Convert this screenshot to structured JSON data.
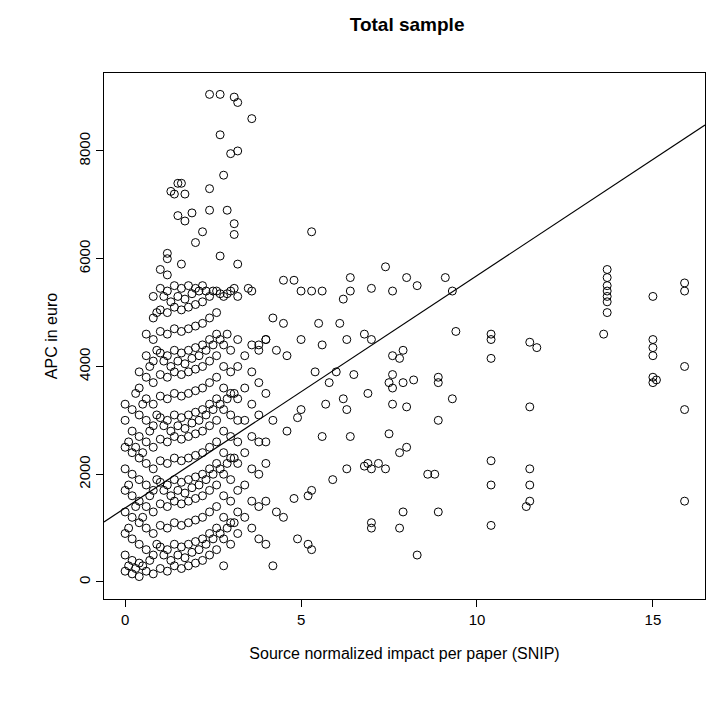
{
  "chart_data": {
    "type": "scatter",
    "title": "Total sample",
    "x_label": "Source normalized impact per paper (SNIP)",
    "y_label": "APC in euro",
    "xlim": [
      -0.6,
      16.48
    ],
    "ylim": [
      -316,
      9447
    ],
    "xticks": [
      0,
      5,
      10,
      15
    ],
    "yticks": [
      0,
      2000,
      4000,
      6000,
      8000
    ],
    "grid": false,
    "series": [
      {
        "type": "scatter",
        "marker": "open_circle",
        "color": "#000000",
        "x": [
          0.0,
          0.0,
          0.0,
          0.0,
          0.0,
          0.0,
          0.0,
          0.0,
          0.0,
          0.1,
          0.1,
          0.1,
          0.1,
          0.2,
          0.2,
          0.2,
          0.2,
          0.2,
          0.2,
          0.2,
          0.2,
          0.2,
          0.3,
          0.3,
          0.3,
          0.3,
          0.4,
          0.4,
          0.4,
          0.4,
          0.4,
          0.4,
          0.4,
          0.4,
          0.4,
          0.4,
          0.4,
          0.5,
          0.5,
          0.5,
          0.5,
          0.6,
          0.6,
          0.6,
          0.6,
          0.6,
          0.6,
          0.6,
          0.6,
          0.6,
          0.6,
          0.6,
          0.6,
          0.7,
          0.7,
          0.7,
          0.7,
          0.8,
          0.8,
          0.8,
          0.8,
          0.8,
          0.8,
          0.8,
          0.8,
          0.8,
          0.8,
          0.8,
          0.8,
          0.8,
          0.8,
          0.9,
          0.9,
          0.9,
          0.9,
          0.9,
          1.0,
          1.0,
          1.0,
          1.0,
          1.0,
          1.0,
          1.0,
          1.0,
          1.0,
          1.0,
          1.0,
          1.0,
          1.0,
          1.0,
          1.0,
          1.1,
          1.1,
          1.1,
          1.1,
          1.1,
          1.2,
          1.2,
          1.2,
          1.2,
          1.2,
          1.2,
          1.2,
          1.2,
          1.2,
          1.2,
          1.2,
          1.2,
          1.2,
          1.2,
          1.2,
          1.2,
          1.3,
          1.3,
          1.3,
          1.3,
          1.3,
          1.4,
          1.4,
          1.4,
          1.4,
          1.4,
          1.4,
          1.4,
          1.4,
          1.4,
          1.4,
          1.4,
          1.4,
          1.4,
          1.4,
          1.5,
          1.5,
          1.5,
          1.5,
          1.5,
          1.6,
          1.6,
          1.6,
          1.6,
          1.6,
          1.6,
          1.6,
          1.6,
          1.6,
          1.6,
          1.6,
          1.6,
          1.6,
          1.6,
          1.6,
          1.7,
          1.7,
          1.7,
          1.7,
          1.7,
          1.8,
          1.8,
          1.8,
          1.8,
          1.8,
          1.8,
          1.8,
          1.8,
          1.8,
          1.8,
          1.8,
          1.8,
          1.8,
          1.8,
          1.9,
          1.9,
          1.9,
          1.9,
          1.9,
          2.0,
          2.0,
          2.0,
          2.0,
          2.0,
          2.0,
          2.0,
          2.0,
          2.0,
          2.0,
          2.0,
          2.0,
          2.0,
          2.0,
          2.1,
          2.1,
          2.1,
          2.1,
          2.1,
          2.2,
          2.2,
          2.2,
          2.2,
          2.2,
          2.2,
          2.2,
          2.2,
          2.2,
          2.2,
          2.2,
          2.2,
          2.2,
          2.2,
          2.3,
          2.3,
          2.3,
          2.3,
          2.3,
          2.4,
          2.4,
          2.4,
          2.4,
          2.4,
          2.4,
          2.4,
          2.4,
          2.4,
          2.4,
          2.4,
          2.4,
          2.4,
          2.5,
          2.5,
          2.5,
          2.5,
          2.5,
          2.6,
          2.6,
          2.6,
          2.6,
          2.6,
          2.6,
          2.6,
          2.6,
          2.6,
          2.6,
          2.6,
          2.6,
          2.6,
          2.7,
          2.7,
          2.7,
          2.7,
          2.7,
          2.8,
          2.8,
          2.8,
          2.8,
          2.8,
          2.8,
          2.8,
          2.8,
          2.8,
          2.8,
          2.8,
          2.8,
          2.9,
          2.9,
          2.9,
          2.9,
          2.9,
          3.0,
          3.0,
          3.0,
          3.0,
          3.0,
          3.0,
          3.0,
          3.0,
          3.0,
          3.0,
          3.0,
          3.1,
          3.1,
          3.1,
          3.1,
          3.2,
          3.2,
          3.2,
          3.2,
          3.2,
          3.2,
          3.2,
          3.2,
          3.2,
          3.2,
          3.4,
          3.4,
          3.4,
          3.4,
          3.4,
          3.4,
          3.6,
          3.6,
          3.6,
          3.6,
          3.6,
          3.6,
          3.6,
          3.8,
          3.8,
          3.8,
          3.8,
          3.8,
          3.8,
          3.8,
          4.0,
          4.0,
          4.0,
          4.0,
          4.0,
          1.4,
          1.5,
          1.6,
          1.7,
          1.5,
          1.7,
          1.9,
          2.4,
          2.7,
          3.1,
          3.2,
          2.7,
          3.6,
          3.0,
          3.2,
          2.8,
          2.4,
          2.9,
          3.1,
          3.1,
          2.4,
          2.2,
          1.3,
          2.0,
          2.7,
          3.2,
          1.2,
          5.3,
          4.5,
          4.8,
          5.0,
          5.3,
          5.6,
          6.4,
          6.4,
          7.0,
          7.6,
          7.4,
          8.0,
          8.3,
          9.1,
          9.3,
          6.2,
          3.5,
          3.6,
          4.2,
          4.5,
          5.5,
          6.1,
          6.8,
          5.0,
          4.0,
          3.8,
          4.3,
          4.6,
          5.6,
          6.3,
          7.0,
          7.6,
          7.9,
          9.4,
          7.8,
          6.5,
          7.5,
          7.6,
          7.9,
          8.2,
          8.9,
          8.9,
          7.6,
          6.0,
          5.4,
          5.8,
          6.9,
          6.2,
          5.0,
          5.7,
          7.6,
          8.0,
          6.3,
          4.9,
          4.2,
          4.6,
          5.6,
          6.4,
          7.5,
          8.0,
          7.8,
          7.2,
          7.0,
          6.9,
          6.8,
          7.4,
          6.3,
          5.9,
          5.3,
          5.2,
          4.8,
          4.3,
          4.5,
          4.9,
          5.2,
          5.3,
          4.2,
          4.0,
          7.0,
          7.0,
          7.9,
          7.8,
          8.3,
          8.6,
          8.9,
          8.9,
          8.8,
          9.3,
          10.4,
          10.4,
          10.4,
          10.4,
          10.4,
          10.4,
          11.5,
          11.7,
          11.5,
          11.5,
          11.5,
          11.5,
          11.4,
          13.7,
          13.7,
          13.7,
          13.7,
          13.7,
          13.7,
          13.7,
          13.6,
          15.0,
          15.0,
          15.0,
          15.0,
          15.0,
          15.0,
          15.1,
          15.9,
          15.9,
          15.9,
          15.9,
          15.9
        ],
        "values": [
          200,
          500,
          900,
          1300,
          1700,
          2100,
          2500,
          3000,
          3300,
          300,
          1000,
          1800,
          2600,
          150,
          400,
          800,
          1200,
          1600,
          2000,
          2400,
          2800,
          3200,
          250,
          1400,
          2500,
          3500,
          100,
          350,
          700,
          1100,
          1500,
          1900,
          2300,
          2700,
          3100,
          3600,
          3900,
          300,
          1200,
          2400,
          3300,
          200,
          600,
          1000,
          1400,
          1800,
          2200,
          2600,
          3000,
          3400,
          3800,
          4200,
          4600,
          400,
          1600,
          2800,
          4000,
          150,
          500,
          900,
          1300,
          1700,
          2100,
          2500,
          2900,
          3300,
          3700,
          4100,
          4500,
          4900,
          5300,
          700,
          1900,
          3100,
          4300,
          5000,
          250,
          650,
          1050,
          1450,
          1850,
          2250,
          2650,
          3050,
          3450,
          3850,
          4250,
          4650,
          5050,
          5450,
          5800,
          500,
          1700,
          2900,
          4100,
          5300,
          200,
          600,
          1000,
          1400,
          1800,
          2200,
          2600,
          3000,
          3400,
          3800,
          4200,
          4600,
          5000,
          5400,
          5700,
          6100,
          400,
          1600,
          2800,
          4000,
          5200,
          300,
          700,
          1100,
          1500,
          1900,
          2300,
          2700,
          3100,
          3500,
          3900,
          4300,
          4700,
          5100,
          5500,
          500,
          1700,
          2900,
          4100,
          5300,
          250,
          650,
          1050,
          1450,
          1850,
          2250,
          2650,
          3050,
          3450,
          3850,
          4250,
          4650,
          5050,
          5450,
          5900,
          450,
          1650,
          2850,
          4050,
          5250,
          300,
          700,
          1100,
          1500,
          1900,
          2300,
          2700,
          3100,
          3500,
          3900,
          4300,
          4700,
          5100,
          5500,
          550,
          1750,
          2950,
          4150,
          5350,
          350,
          750,
          1150,
          1550,
          1950,
          2350,
          2750,
          3150,
          3550,
          3950,
          4350,
          4750,
          5150,
          5450,
          600,
          1800,
          3000,
          4200,
          5400,
          400,
          800,
          1200,
          1600,
          2000,
          2400,
          2800,
          3200,
          3600,
          4000,
          4400,
          4800,
          5200,
          5500,
          700,
          1900,
          3100,
          4300,
          5400,
          500,
          900,
          1300,
          1700,
          2100,
          2500,
          2900,
          3300,
          3700,
          4100,
          4500,
          4900,
          5300,
          800,
          2000,
          3200,
          4400,
          5400,
          600,
          1000,
          1400,
          1800,
          2200,
          2600,
          3000,
          3400,
          3800,
          4200,
          4600,
          5000,
          5400,
          900,
          2100,
          3300,
          4500,
          5350,
          300,
          800,
          1200,
          1600,
          2000,
          2400,
          2800,
          3200,
          3600,
          4000,
          4400,
          5300,
          1000,
          2200,
          3400,
          4600,
          5350,
          700,
          1100,
          1500,
          1900,
          2300,
          2700,
          3100,
          3500,
          3900,
          4300,
          5400,
          1100,
          2300,
          3500,
          5450,
          900,
          1300,
          1700,
          2200,
          2600,
          3000,
          3400,
          4000,
          4500,
          5300,
          1200,
          1800,
          2400,
          3000,
          3600,
          4200,
          1000,
          1500,
          2100,
          2700,
          3300,
          3900,
          4400,
          800,
          1400,
          2000,
          2600,
          3100,
          3700,
          4300,
          1500,
          2200,
          2600,
          3500,
          4500,
          7200,
          7400,
          7400,
          7200,
          6800,
          6700,
          6850,
          9050,
          9050,
          9000,
          8900,
          8300,
          8600,
          7950,
          8000,
          7550,
          7300,
          6900,
          6650,
          6450,
          6900,
          6500,
          7250,
          6300,
          6050,
          5900,
          6000,
          6500,
          5600,
          5600,
          5400,
          5400,
          5400,
          5650,
          5400,
          5450,
          5400,
          5850,
          5650,
          5500,
          5650,
          5400,
          5250,
          5450,
          5400,
          4900,
          4800,
          4800,
          4800,
          4600,
          4500,
          4500,
          4400,
          4300,
          4200,
          4400,
          4500,
          4500,
          4200,
          4300,
          4650,
          4150,
          3850,
          3700,
          3600,
          3700,
          3750,
          3800,
          3700,
          3850,
          3900,
          3900,
          3700,
          3500,
          3400,
          3200,
          3300,
          3300,
          3250,
          3200,
          3050,
          3000,
          2800,
          2700,
          2700,
          2750,
          2500,
          2400,
          2200,
          2100,
          2200,
          2150,
          2100,
          2100,
          1900,
          1700,
          1600,
          1550,
          1300,
          1200,
          800,
          700,
          600,
          300,
          700,
          1100,
          1000,
          1300,
          1000,
          500,
          2000,
          3000,
          1300,
          2000,
          3400,
          4600,
          4500,
          4150,
          2250,
          1800,
          1050,
          4450,
          4350,
          3250,
          2100,
          1800,
          1500,
          1400,
          5800,
          5650,
          5500,
          5400,
          5300,
          5200,
          5000,
          4600,
          5300,
          4500,
          4350,
          4200,
          3800,
          3700,
          3750,
          5550,
          5400,
          4000,
          3200,
          1500
        ]
      },
      {
        "type": "line",
        "line_style": "solid",
        "color": "#000000",
        "x": [
          -0.6,
          16.48
        ],
        "values": [
          1114,
          8482
        ]
      }
    ]
  }
}
